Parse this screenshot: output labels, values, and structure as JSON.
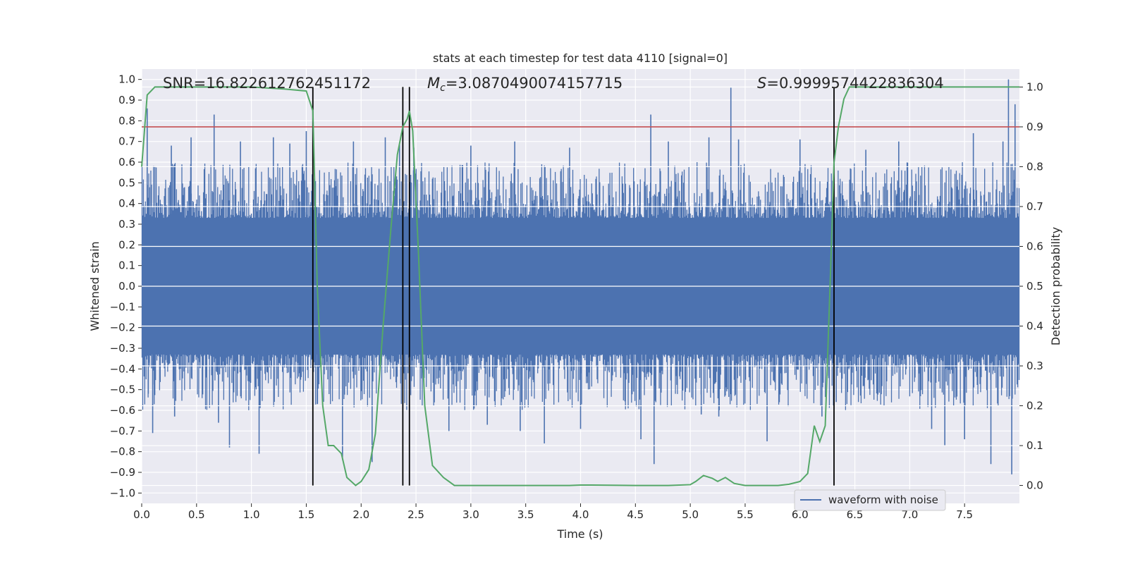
{
  "chart_data": {
    "type": "line",
    "title": "stats at each timestep for test data 4110 [signal=0]",
    "xlabel": "Time (s)",
    "ylabel_left": "Whitened strain",
    "ylabel_right": "Detection probability",
    "xlim": [
      0.0,
      8.0
    ],
    "ylim_left": [
      -1.05,
      1.05
    ],
    "ylim_right": [
      -0.045,
      1.045
    ],
    "x_ticks": [
      0.0,
      0.5,
      1.0,
      1.5,
      2.0,
      2.5,
      3.0,
      3.5,
      4.0,
      4.5,
      5.0,
      5.5,
      6.0,
      6.5,
      7.0,
      7.5
    ],
    "x_tick_labels": [
      "0.0",
      "0.5",
      "1.0",
      "1.5",
      "2.0",
      "2.5",
      "3.0",
      "3.5",
      "4.0",
      "4.5",
      "5.0",
      "5.5",
      "6.0",
      "6.5",
      "7.0",
      "7.5"
    ],
    "y_left_ticks": [
      1.0,
      0.9,
      0.8,
      0.7,
      0.6,
      0.5,
      0.4,
      0.3,
      0.2,
      0.1,
      0.0,
      -0.1,
      -0.2,
      -0.3,
      -0.4,
      -0.5,
      -0.6,
      -0.7,
      -0.8,
      -0.9,
      -1.0
    ],
    "y_left_tick_labels": [
      "1.0",
      "0.9",
      "0.8",
      "0.7",
      "0.6",
      "0.5",
      "0.4",
      "0.3",
      "0.2",
      "0.1",
      "0.0",
      "−0.1",
      "−0.2",
      "−0.3",
      "−0.4",
      "−0.5",
      "−0.6",
      "−0.7",
      "−0.8",
      "−0.9",
      "−1.0"
    ],
    "y_right_ticks": [
      1.0,
      0.9,
      0.8,
      0.7,
      0.6,
      0.5,
      0.4,
      0.3,
      0.2,
      0.1,
      0.0
    ],
    "y_right_tick_labels": [
      "1.0",
      "0.9",
      "0.8",
      "0.7",
      "0.6",
      "0.5",
      "0.4",
      "0.3",
      "0.2",
      "0.1",
      "0.0"
    ],
    "grid": true,
    "annotations": {
      "snr": "SNR=16.822612762451172",
      "mc_symbol": "M",
      "mc_subscript": "c",
      "mc_value": "=3.0870490074157715",
      "s_symbol": "S",
      "s_value": "=0.9999574422836304"
    },
    "threshold": {
      "y_right": 0.9,
      "color": "#c44e52"
    },
    "vertical_lines_x": [
      1.56,
      2.38,
      2.44,
      6.31
    ],
    "noise_series": {
      "name": "waveform with noise",
      "color": "#4c72b0",
      "core_amplitude": 0.33,
      "peak_amplitude": 0.55,
      "spikes": [
        [
          0.05,
          0.86
        ],
        [
          0.06,
          -0.52
        ],
        [
          0.1,
          -0.71
        ],
        [
          0.27,
          0.68
        ],
        [
          0.3,
          -0.63
        ],
        [
          0.45,
          0.72
        ],
        [
          0.66,
          0.83
        ],
        [
          0.7,
          -0.66
        ],
        [
          0.8,
          -0.78
        ],
        [
          0.9,
          0.7
        ],
        [
          1.07,
          -0.81
        ],
        [
          1.2,
          0.72
        ],
        [
          1.35,
          0.69
        ],
        [
          1.5,
          0.75
        ],
        [
          1.6,
          -0.57
        ],
        [
          1.83,
          -0.84
        ],
        [
          1.93,
          0.7
        ],
        [
          2.1,
          -0.85
        ],
        [
          2.22,
          0.72
        ],
        [
          2.35,
          0.69
        ],
        [
          2.48,
          0.67
        ],
        [
          2.8,
          -0.7
        ],
        [
          3.0,
          0.68
        ],
        [
          3.15,
          -0.67
        ],
        [
          3.4,
          0.7
        ],
        [
          3.45,
          -0.7
        ],
        [
          3.67,
          -0.76
        ],
        [
          3.9,
          0.67
        ],
        [
          4.0,
          -0.69
        ],
        [
          4.55,
          -0.74
        ],
        [
          4.64,
          0.83
        ],
        [
          4.67,
          -0.86
        ],
        [
          4.8,
          0.7
        ],
        [
          5.1,
          -0.62
        ],
        [
          5.17,
          0.72
        ],
        [
          5.26,
          -0.63
        ],
        [
          5.37,
          0.96
        ],
        [
          5.44,
          0.71
        ],
        [
          5.7,
          -0.75
        ],
        [
          6.0,
          0.71
        ],
        [
          6.2,
          -0.63
        ],
        [
          6.33,
          -0.56
        ],
        [
          6.6,
          0.66
        ],
        [
          6.9,
          0.7
        ],
        [
          7.2,
          -0.69
        ],
        [
          7.32,
          -0.77
        ],
        [
          7.5,
          -0.74
        ],
        [
          7.58,
          0.74
        ],
        [
          7.74,
          -0.86
        ],
        [
          7.85,
          0.7
        ],
        [
          7.9,
          1.0
        ],
        [
          7.93,
          -0.91
        ],
        [
          7.96,
          0.88
        ]
      ]
    },
    "probability_series": {
      "color": "#55a868",
      "x": [
        0.0,
        0.05,
        0.12,
        0.3,
        0.6,
        1.0,
        1.3,
        1.5,
        1.56,
        1.6,
        1.65,
        1.7,
        1.75,
        1.82,
        1.87,
        1.95,
        2.0,
        2.07,
        2.13,
        2.2,
        2.27,
        2.33,
        2.38,
        2.42,
        2.44,
        2.47,
        2.52,
        2.58,
        2.65,
        2.75,
        2.85,
        3.0,
        3.5,
        3.9,
        4.0,
        4.1,
        4.5,
        4.8,
        5.0,
        5.05,
        5.12,
        5.2,
        5.25,
        5.32,
        5.4,
        5.5,
        5.6,
        5.8,
        5.9,
        6.0,
        6.07,
        6.13,
        6.18,
        6.23,
        6.28,
        6.31,
        6.35,
        6.4,
        6.45,
        6.5,
        6.8,
        7.2,
        7.6,
        7.9,
        8.0
      ],
      "y": [
        0.8,
        0.98,
        1.0,
        1.0,
        1.0,
        1.0,
        0.995,
        0.99,
        0.94,
        0.5,
        0.2,
        0.1,
        0.1,
        0.08,
        0.02,
        0.0,
        0.01,
        0.04,
        0.13,
        0.4,
        0.64,
        0.83,
        0.9,
        0.92,
        0.94,
        0.89,
        0.6,
        0.2,
        0.05,
        0.02,
        0.0,
        0.0,
        0.0,
        0.0,
        0.001,
        0.001,
        0.0,
        0.0,
        0.002,
        0.01,
        0.025,
        0.018,
        0.01,
        0.02,
        0.005,
        0.0,
        0.0,
        0.0,
        0.003,
        0.01,
        0.03,
        0.15,
        0.11,
        0.15,
        0.55,
        0.81,
        0.9,
        0.97,
        1.0,
        1.0,
        1.0,
        1.0,
        1.0,
        1.0,
        1.0
      ]
    },
    "legend": {
      "entries": [
        "waveform with noise"
      ],
      "placement": "lower-right"
    }
  }
}
